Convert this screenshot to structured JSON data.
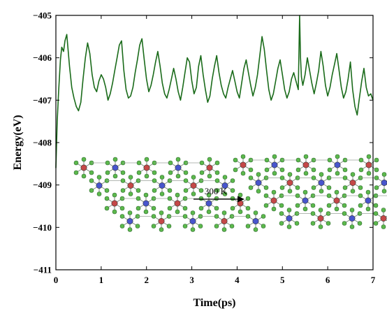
{
  "chart_data": {
    "type": "line",
    "title": "",
    "xlabel": "Time(ps)",
    "ylabel": "Energy(eV)",
    "xlim": [
      0,
      7
    ],
    "ylim": [
      -411,
      -405
    ],
    "xticks": [
      "0",
      "1",
      "2",
      "3",
      "4",
      "5",
      "6",
      "7"
    ],
    "yticks": [
      "-405",
      "-406",
      "-407",
      "-408",
      "-409",
      "-410",
      "-411"
    ],
    "grid": false,
    "legend": "none",
    "series": [
      {
        "color": "#1a6b1a",
        "x": [
          0.0,
          0.03,
          0.06,
          0.1,
          0.13,
          0.17,
          0.2,
          0.24,
          0.3,
          0.35,
          0.4,
          0.45,
          0.5,
          0.55,
          0.6,
          0.65,
          0.7,
          0.75,
          0.8,
          0.85,
          0.9,
          0.95,
          1.0,
          1.05,
          1.1,
          1.15,
          1.2,
          1.25,
          1.3,
          1.35,
          1.4,
          1.45,
          1.5,
          1.55,
          1.6,
          1.65,
          1.7,
          1.75,
          1.8,
          1.85,
          1.9,
          1.95,
          2.0,
          2.05,
          2.1,
          2.15,
          2.2,
          2.25,
          2.3,
          2.35,
          2.4,
          2.45,
          2.5,
          2.55,
          2.6,
          2.65,
          2.7,
          2.75,
          2.8,
          2.85,
          2.9,
          2.95,
          3.0,
          3.05,
          3.1,
          3.15,
          3.2,
          3.25,
          3.3,
          3.35,
          3.4,
          3.45,
          3.5,
          3.55,
          3.6,
          3.65,
          3.7,
          3.75,
          3.8,
          3.85,
          3.9,
          3.95,
          4.0,
          4.05,
          4.1,
          4.15,
          4.2,
          4.25,
          4.3,
          4.35,
          4.4,
          4.45,
          4.5,
          4.55,
          4.6,
          4.65,
          4.7,
          4.75,
          4.8,
          4.85,
          4.9,
          4.95,
          5.0,
          5.05,
          5.1,
          5.15,
          5.2,
          5.25,
          5.3,
          5.35,
          5.38,
          5.4,
          5.42,
          5.45,
          5.5,
          5.55,
          5.6,
          5.65,
          5.7,
          5.75,
          5.8,
          5.85,
          5.9,
          5.95,
          6.0,
          6.05,
          6.1,
          6.15,
          6.2,
          6.25,
          6.3,
          6.35,
          6.4,
          6.45,
          6.5,
          6.55,
          6.6,
          6.65,
          6.7,
          6.75,
          6.8,
          6.85,
          6.9,
          6.95,
          7.0
        ],
        "y": [
          -408.6,
          -407.5,
          -406.8,
          -406.05,
          -405.75,
          -405.85,
          -405.6,
          -405.45,
          -406.2,
          -406.7,
          -406.95,
          -407.15,
          -407.25,
          -407.05,
          -406.5,
          -406.0,
          -405.65,
          -405.9,
          -406.4,
          -406.7,
          -406.8,
          -406.55,
          -406.4,
          -406.5,
          -406.7,
          -407.0,
          -406.85,
          -406.6,
          -406.3,
          -406.0,
          -405.7,
          -405.6,
          -406.3,
          -406.75,
          -406.95,
          -406.9,
          -406.7,
          -406.35,
          -406.05,
          -405.7,
          -405.55,
          -406.05,
          -406.5,
          -406.8,
          -406.65,
          -406.4,
          -406.1,
          -405.85,
          -406.2,
          -406.6,
          -406.85,
          -406.95,
          -406.75,
          -406.5,
          -406.25,
          -406.5,
          -406.8,
          -407.0,
          -406.7,
          -406.35,
          -406.0,
          -406.1,
          -406.55,
          -406.85,
          -406.7,
          -406.2,
          -405.95,
          -406.4,
          -406.75,
          -407.05,
          -406.9,
          -406.5,
          -406.2,
          -405.95,
          -406.35,
          -406.65,
          -406.85,
          -406.95,
          -406.7,
          -406.5,
          -406.3,
          -406.55,
          -406.8,
          -406.95,
          -406.6,
          -406.25,
          -406.05,
          -406.35,
          -406.65,
          -406.9,
          -406.7,
          -406.4,
          -405.95,
          -405.5,
          -405.8,
          -406.3,
          -406.75,
          -407.0,
          -406.85,
          -406.55,
          -406.25,
          -406.05,
          -406.4,
          -406.75,
          -406.95,
          -406.8,
          -406.5,
          -406.35,
          -406.55,
          -406.75,
          -405.0,
          -406.0,
          -406.45,
          -406.65,
          -406.4,
          -406.0,
          -406.3,
          -406.6,
          -406.85,
          -406.6,
          -406.3,
          -405.85,
          -406.2,
          -406.65,
          -406.9,
          -406.7,
          -406.4,
          -406.15,
          -405.9,
          -406.3,
          -406.7,
          -406.95,
          -406.8,
          -406.5,
          -406.1,
          -406.75,
          -407.15,
          -407.35,
          -406.95,
          -406.55,
          -406.25,
          -406.7,
          -406.9,
          -406.85,
          -407.0
        ]
      }
    ],
    "annotations": {
      "inset_label": "300 K"
    }
  }
}
